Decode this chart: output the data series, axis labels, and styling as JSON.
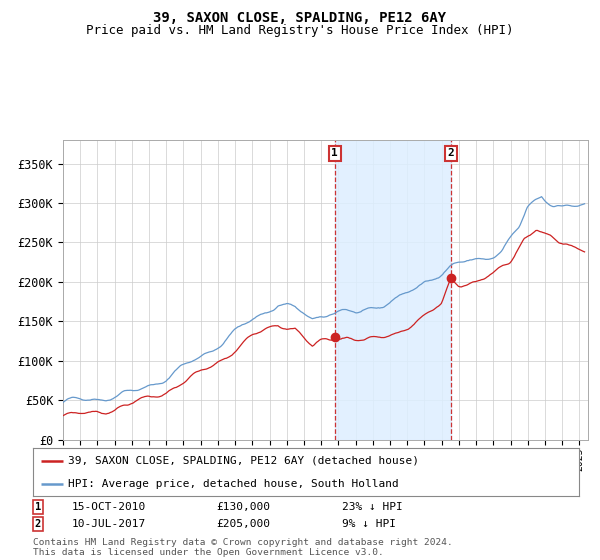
{
  "title": "39, SAXON CLOSE, SPALDING, PE12 6AY",
  "subtitle": "Price paid vs. HM Land Registry's House Price Index (HPI)",
  "xlim_start": 1995.0,
  "xlim_end": 2025.5,
  "ylim": [
    0,
    380000
  ],
  "yticks": [
    0,
    50000,
    100000,
    150000,
    200000,
    250000,
    300000,
    350000
  ],
  "ytick_labels": [
    "£0",
    "£50K",
    "£100K",
    "£150K",
    "£200K",
    "£250K",
    "£300K",
    "£350K"
  ],
  "transaction1": {
    "date_num": 2010.79,
    "price": 130000,
    "label": "1",
    "date_str": "15-OCT-2010",
    "pct": "23% ↓ HPI"
  },
  "transaction2": {
    "date_num": 2017.53,
    "price": 205000,
    "label": "2",
    "date_str": "10-JUL-2017",
    "pct": "9% ↓ HPI"
  },
  "legend_line1": "39, SAXON CLOSE, SPALDING, PE12 6AY (detached house)",
  "legend_line2": "HPI: Average price, detached house, South Holland",
  "footnote": "Contains HM Land Registry data © Crown copyright and database right 2024.\nThis data is licensed under the Open Government Licence v3.0.",
  "color_red": "#cc2222",
  "color_blue": "#6699cc",
  "color_shade": "#ddeeff",
  "background_color": "#ffffff",
  "grid_color": "#cccccc",
  "title_fontsize": 10,
  "subtitle_fontsize": 9,
  "axis_fontsize": 8.5
}
